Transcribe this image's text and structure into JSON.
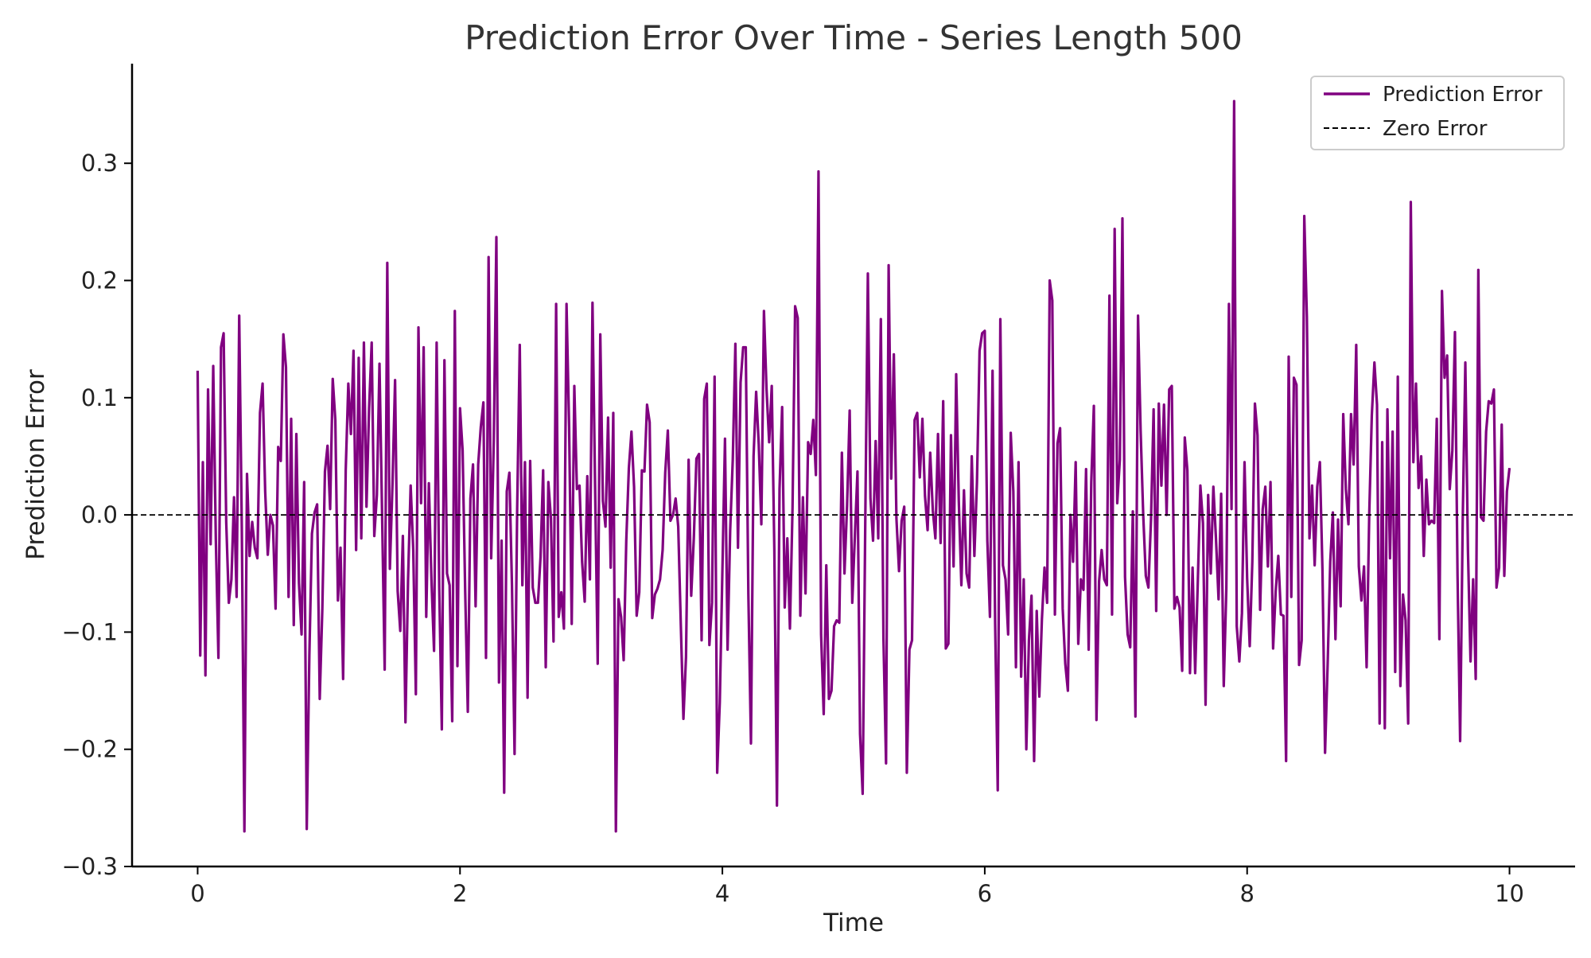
{
  "chart_data": {
    "type": "line",
    "title": "Prediction Error Over Time - Series Length 500",
    "xlabel": "Time",
    "ylabel": "Prediction Error",
    "xlim": [
      -0.5,
      10.5
    ],
    "ylim": [
      -0.3,
      0.385
    ],
    "xticks": [
      0,
      2,
      4,
      6,
      8,
      10
    ],
    "xtick_labels": [
      "0",
      "2",
      "4",
      "6",
      "8",
      "10"
    ],
    "yticks": [
      -0.3,
      -0.2,
      -0.1,
      0.0,
      0.1,
      0.2,
      0.3
    ],
    "ytick_labels": [
      "−0.3",
      "−0.2",
      "−0.1",
      "0.0",
      "0.1",
      "0.2",
      "0.3"
    ],
    "grid": false,
    "legend_position": "top-right",
    "legend": [
      "Prediction Error",
      "Zero Error"
    ],
    "series": [
      {
        "name": "Prediction Error",
        "color": "#800080",
        "style": "solid",
        "x_start": 0,
        "x_end": 10,
        "values": [
          0.123,
          -0.12,
          0.045,
          -0.137,
          0.107,
          -0.025,
          0.127,
          -0.021,
          -0.122,
          0.143,
          0.155,
          -0.006,
          -0.075,
          -0.055,
          0.015,
          -0.07,
          0.17,
          -0.011,
          -0.27,
          0.035,
          -0.035,
          -0.006,
          -0.028,
          -0.037,
          0.087,
          0.112,
          0.02,
          -0.034,
          0.0,
          -0.009,
          -0.08,
          0.058,
          0.046,
          0.154,
          0.126,
          -0.07,
          0.082,
          -0.094,
          0.069,
          -0.058,
          -0.102,
          0.028,
          -0.268,
          -0.12,
          -0.016,
          0.002,
          0.009,
          -0.157,
          -0.08,
          0.037,
          0.059,
          0.005,
          0.116,
          0.081,
          -0.073,
          -0.028,
          -0.14,
          0.038,
          0.112,
          0.069,
          0.14,
          -0.03,
          0.134,
          -0.02,
          0.147,
          0.007,
          0.091,
          0.147,
          -0.018,
          0.017,
          0.129,
          0.001,
          -0.132,
          0.215,
          -0.046,
          0.026,
          0.115,
          -0.065,
          -0.099,
          -0.018,
          -0.177,
          -0.055,
          0.025,
          -0.03,
          -0.153,
          0.16,
          0.01,
          0.143,
          -0.087,
          0.027,
          -0.055,
          -0.116,
          0.147,
          -0.062,
          -0.183,
          0.132,
          -0.05,
          -0.06,
          -0.176,
          0.174,
          -0.129,
          0.091,
          0.055,
          -0.066,
          -0.168,
          0.014,
          0.043,
          -0.078,
          0.043,
          0.075,
          0.096,
          -0.122,
          0.22,
          -0.037,
          0.063,
          0.237,
          -0.143,
          -0.022,
          -0.237,
          0.02,
          0.036,
          -0.06,
          -0.204,
          0.005,
          0.145,
          -0.06,
          0.045,
          -0.156,
          0.046,
          -0.062,
          -0.075,
          -0.075,
          -0.036,
          0.038,
          -0.13,
          0.028,
          -0.003,
          -0.108,
          0.18,
          -0.087,
          -0.066,
          -0.097,
          0.18,
          0.075,
          -0.093,
          0.11,
          0.022,
          0.025,
          -0.04,
          -0.074,
          0.033,
          -0.055,
          0.181,
          0.024,
          -0.127,
          0.154,
          0.012,
          -0.01,
          0.083,
          -0.045,
          0.087,
          -0.27,
          -0.072,
          -0.087,
          -0.124,
          -0.022,
          0.04,
          0.071,
          0.024,
          -0.086,
          -0.066,
          0.038,
          0.037,
          0.094,
          0.079,
          -0.088,
          -0.068,
          -0.063,
          -0.055,
          -0.03,
          0.036,
          0.072,
          -0.005,
          0.0,
          0.014,
          -0.01,
          -0.094,
          -0.174,
          -0.121,
          0.047,
          -0.069,
          -0.02,
          0.048,
          0.052,
          -0.107,
          0.099,
          0.112,
          -0.111,
          -0.075,
          0.118,
          -0.22,
          -0.16,
          -0.048,
          0.065,
          -0.115,
          -0.013,
          0.047,
          0.146,
          -0.028,
          0.113,
          0.143,
          0.143,
          -0.068,
          -0.195,
          0.05,
          0.105,
          0.06,
          -0.008,
          0.174,
          0.107,
          0.062,
          0.11,
          -0.03,
          -0.248,
          0.022,
          0.092,
          -0.079,
          -0.02,
          -0.097,
          0.006,
          0.178,
          0.168,
          -0.086,
          0.015,
          -0.067,
          0.062,
          0.052,
          0.081,
          0.034,
          0.293,
          -0.102,
          -0.17,
          -0.043,
          -0.157,
          -0.15,
          -0.095,
          -0.09,
          -0.092,
          0.053,
          -0.05,
          0.008,
          0.089,
          -0.075,
          -0.018,
          0.037,
          -0.187,
          -0.238,
          -0.007,
          0.206,
          0.014,
          -0.022,
          0.063,
          -0.02,
          0.167,
          -0.105,
          -0.212,
          0.213,
          0.031,
          0.137,
          -0.003,
          -0.048,
          -0.005,
          0.007,
          -0.22,
          -0.115,
          -0.107,
          0.081,
          0.087,
          0.032,
          0.082,
          0.016,
          -0.013,
          0.053,
          0.004,
          -0.02,
          0.069,
          -0.024,
          0.097,
          -0.114,
          -0.11,
          0.068,
          -0.044,
          0.12,
          0.012,
          -0.06,
          0.021,
          -0.05,
          -0.062,
          0.05,
          -0.035,
          0.028,
          0.14,
          0.155,
          0.157,
          -0.022,
          -0.087,
          0.123,
          -0.093,
          -0.235,
          0.167,
          -0.043,
          -0.055,
          -0.102,
          0.07,
          0.02,
          -0.13,
          0.045,
          -0.138,
          -0.055,
          -0.2,
          -0.107,
          -0.069,
          -0.21,
          -0.082,
          -0.155,
          -0.089,
          -0.045,
          -0.075,
          0.2,
          0.183,
          -0.085,
          0.061,
          0.074,
          -0.08,
          -0.127,
          -0.15,
          0.0,
          -0.04,
          0.045,
          -0.11,
          -0.055,
          -0.064,
          0.039,
          -0.115,
          0.028,
          0.093,
          -0.175,
          -0.057,
          -0.03,
          -0.055,
          -0.06,
          0.187,
          -0.085,
          0.244,
          0.01,
          0.047,
          0.253,
          -0.053,
          -0.102,
          -0.113,
          0.003,
          -0.172,
          0.17,
          0.072,
          0.0,
          -0.052,
          -0.062,
          -0.004,
          0.09,
          -0.082,
          0.095,
          0.025,
          0.094,
          0.0,
          0.107,
          0.11,
          -0.08,
          -0.07,
          -0.079,
          -0.133,
          0.066,
          0.038,
          -0.135,
          -0.045,
          -0.135,
          -0.058,
          0.025,
          -0.007,
          -0.162,
          0.017,
          -0.05,
          0.024,
          -0.02,
          -0.072,
          0.018,
          -0.146,
          -0.063,
          0.18,
          0.005,
          0.353,
          -0.095,
          -0.125,
          -0.084,
          0.045,
          -0.054,
          -0.112,
          -0.04,
          0.095,
          0.068,
          -0.081,
          0.005,
          0.024,
          -0.044,
          0.028,
          -0.114,
          -0.065,
          -0.035,
          -0.085,
          -0.086,
          -0.21,
          0.135,
          -0.07,
          0.117,
          0.111,
          -0.128,
          -0.107,
          0.255,
          0.169,
          -0.02,
          0.025,
          -0.043,
          0.024,
          0.045,
          -0.047,
          -0.203,
          -0.127,
          -0.04,
          0.002,
          -0.106,
          -0.004,
          -0.078,
          0.086,
          0.022,
          -0.008,
          0.086,
          0.043,
          0.145,
          -0.044,
          -0.073,
          -0.044,
          -0.13,
          0.0,
          0.085,
          0.13,
          0.094,
          -0.178,
          0.062,
          -0.182,
          0.09,
          -0.037,
          0.071,
          -0.134,
          0.118,
          -0.146,
          -0.068,
          -0.09,
          -0.178,
          0.267,
          0.045,
          0.112,
          0.023,
          0.05,
          -0.035,
          0.03,
          -0.008,
          -0.005,
          -0.007,
          0.082,
          -0.106,
          0.191,
          0.117,
          0.136,
          0.022,
          0.055,
          0.156,
          -0.052,
          -0.193,
          -0.003,
          0.13,
          -0.03,
          -0.125,
          -0.055,
          -0.14,
          0.209,
          -0.002,
          -0.005,
          0.071,
          0.097,
          0.095,
          0.107,
          -0.062,
          -0.045,
          0.077,
          -0.052,
          0.02,
          0.04
        ]
      },
      {
        "name": "Zero Error",
        "color": "#000000",
        "style": "dashed",
        "constant": 0.0
      }
    ]
  }
}
